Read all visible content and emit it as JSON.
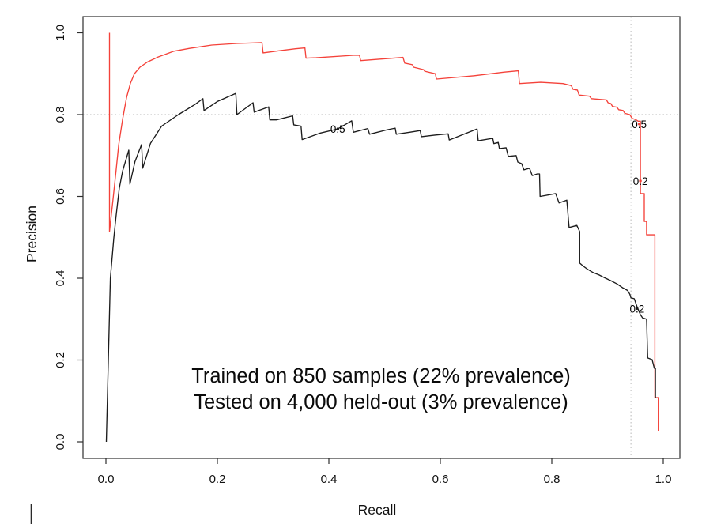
{
  "chart_data": {
    "type": "line",
    "title": "",
    "xlabel": "Recall",
    "ylabel": "Precision",
    "x_tick_labels": [
      "0.0",
      "0.2",
      "0.4",
      "0.6",
      "0.8",
      "1.0"
    ],
    "x_tick_values": [
      0.0,
      0.2,
      0.4,
      0.6,
      0.8,
      1.0
    ],
    "y_tick_labels": [
      "0.0",
      "0.2",
      "0.4",
      "0.6",
      "0.8",
      "1.0"
    ],
    "y_tick_values": [
      0.0,
      0.2,
      0.4,
      0.6,
      0.8,
      1.0
    ],
    "xlim": [
      -0.041,
      1.03
    ],
    "ylim": [
      -0.041,
      1.041
    ],
    "grid": false,
    "legend": null,
    "reference_lines": {
      "horizontal_precision": 0.8,
      "vertical_recall": 0.942,
      "style": "dotted",
      "color": "#b8b8b8"
    },
    "series": [
      {
        "name": "red-pr-curve",
        "color": "#f4423a",
        "points": [
          [
            0.0064,
            1.0
          ],
          [
            0.0064,
            0.514
          ],
          [
            0.013,
            0.597
          ],
          [
            0.018,
            0.661
          ],
          [
            0.023,
            0.727
          ],
          [
            0.03,
            0.79
          ],
          [
            0.037,
            0.842
          ],
          [
            0.044,
            0.877
          ],
          [
            0.051,
            0.9
          ],
          [
            0.061,
            0.916
          ],
          [
            0.075,
            0.929
          ],
          [
            0.094,
            0.941
          ],
          [
            0.122,
            0.955
          ],
          [
            0.15,
            0.962
          ],
          [
            0.19,
            0.97
          ],
          [
            0.235,
            0.974
          ],
          [
            0.28,
            0.976
          ],
          [
            0.282,
            0.951
          ],
          [
            0.31,
            0.956
          ],
          [
            0.34,
            0.961
          ],
          [
            0.357,
            0.963
          ],
          [
            0.359,
            0.938
          ],
          [
            0.377,
            0.939
          ],
          [
            0.444,
            0.945
          ],
          [
            0.455,
            0.945
          ],
          [
            0.457,
            0.932
          ],
          [
            0.533,
            0.94
          ],
          [
            0.536,
            0.926
          ],
          [
            0.55,
            0.922
          ],
          [
            0.552,
            0.916
          ],
          [
            0.57,
            0.91
          ],
          [
            0.572,
            0.906
          ],
          [
            0.591,
            0.9
          ],
          [
            0.593,
            0.887
          ],
          [
            0.661,
            0.895
          ],
          [
            0.715,
            0.904
          ],
          [
            0.74,
            0.907
          ],
          [
            0.742,
            0.876
          ],
          [
            0.78,
            0.879
          ],
          [
            0.82,
            0.876
          ],
          [
            0.835,
            0.871
          ],
          [
            0.838,
            0.862
          ],
          [
            0.846,
            0.86
          ],
          [
            0.849,
            0.848
          ],
          [
            0.868,
            0.845
          ],
          [
            0.871,
            0.839
          ],
          [
            0.898,
            0.836
          ],
          [
            0.901,
            0.829
          ],
          [
            0.906,
            0.827
          ],
          [
            0.909,
            0.82
          ],
          [
            0.917,
            0.818
          ],
          [
            0.92,
            0.812
          ],
          [
            0.928,
            0.81
          ],
          [
            0.931,
            0.803
          ],
          [
            0.94,
            0.8
          ],
          [
            0.944,
            0.791
          ],
          [
            0.95,
            0.788
          ],
          [
            0.955,
            0.784
          ],
          [
            0.959,
            0.784
          ],
          [
            0.959,
            0.607
          ],
          [
            0.966,
            0.607
          ],
          [
            0.966,
            0.539
          ],
          [
            0.97,
            0.539
          ],
          [
            0.97,
            0.506
          ],
          [
            0.985,
            0.506
          ],
          [
            0.985,
            0.108
          ],
          [
            0.991,
            0.108
          ],
          [
            0.991,
            0.027
          ]
        ]
      },
      {
        "name": "black-pr-curve",
        "color": "#1c1c1c",
        "points": [
          [
            0.0007,
            0.0
          ],
          [
            0.008,
            0.4
          ],
          [
            0.014,
            0.497
          ],
          [
            0.018,
            0.55
          ],
          [
            0.024,
            0.62
          ],
          [
            0.03,
            0.663
          ],
          [
            0.041,
            0.713
          ],
          [
            0.043,
            0.63
          ],
          [
            0.052,
            0.685
          ],
          [
            0.064,
            0.727
          ],
          [
            0.066,
            0.669
          ],
          [
            0.08,
            0.73
          ],
          [
            0.1,
            0.772
          ],
          [
            0.13,
            0.8
          ],
          [
            0.16,
            0.825
          ],
          [
            0.174,
            0.839
          ],
          [
            0.176,
            0.81
          ],
          [
            0.2,
            0.832
          ],
          [
            0.233,
            0.852
          ],
          [
            0.235,
            0.8
          ],
          [
            0.264,
            0.829
          ],
          [
            0.266,
            0.806
          ],
          [
            0.292,
            0.819
          ],
          [
            0.294,
            0.787
          ],
          [
            0.306,
            0.787
          ],
          [
            0.335,
            0.797
          ],
          [
            0.337,
            0.775
          ],
          [
            0.35,
            0.772
          ],
          [
            0.352,
            0.739
          ],
          [
            0.385,
            0.755
          ],
          [
            0.416,
            0.765
          ],
          [
            0.441,
            0.785
          ],
          [
            0.444,
            0.757
          ],
          [
            0.47,
            0.766
          ],
          [
            0.473,
            0.752
          ],
          [
            0.505,
            0.763
          ],
          [
            0.519,
            0.767
          ],
          [
            0.521,
            0.752
          ],
          [
            0.545,
            0.757
          ],
          [
            0.564,
            0.761
          ],
          [
            0.566,
            0.746
          ],
          [
            0.59,
            0.75
          ],
          [
            0.614,
            0.753
          ],
          [
            0.616,
            0.738
          ],
          [
            0.666,
            0.765
          ],
          [
            0.668,
            0.736
          ],
          [
            0.694,
            0.742
          ],
          [
            0.696,
            0.729
          ],
          [
            0.704,
            0.732
          ],
          [
            0.706,
            0.717
          ],
          [
            0.718,
            0.719
          ],
          [
            0.722,
            0.698
          ],
          [
            0.736,
            0.7
          ],
          [
            0.739,
            0.684
          ],
          [
            0.746,
            0.68
          ],
          [
            0.75,
            0.665
          ],
          [
            0.76,
            0.669
          ],
          [
            0.765,
            0.651
          ],
          [
            0.774,
            0.655
          ],
          [
            0.778,
            0.655
          ],
          [
            0.779,
            0.6
          ],
          [
            0.807,
            0.607
          ],
          [
            0.813,
            0.584
          ],
          [
            0.827,
            0.591
          ],
          [
            0.831,
            0.524
          ],
          [
            0.845,
            0.529
          ],
          [
            0.85,
            0.514
          ],
          [
            0.85,
            0.437
          ],
          [
            0.857,
            0.429
          ],
          [
            0.864,
            0.422
          ],
          [
            0.874,
            0.414
          ],
          [
            0.885,
            0.408
          ],
          [
            0.895,
            0.401
          ],
          [
            0.906,
            0.394
          ],
          [
            0.917,
            0.386
          ],
          [
            0.928,
            0.376
          ],
          [
            0.936,
            0.37
          ],
          [
            0.94,
            0.361
          ],
          [
            0.942,
            0.352
          ],
          [
            0.948,
            0.35
          ],
          [
            0.953,
            0.33
          ],
          [
            0.959,
            0.311
          ],
          [
            0.963,
            0.303
          ],
          [
            0.97,
            0.3
          ],
          [
            0.972,
            0.205
          ],
          [
            0.98,
            0.201
          ],
          [
            0.984,
            0.18
          ],
          [
            0.986,
            0.18
          ],
          [
            0.986,
            0.108
          ]
        ]
      }
    ],
    "cutoff_labels": [
      {
        "series": "black-pr-curve",
        "label": "0.5",
        "recall": 0.416,
        "precision": 0.765
      },
      {
        "series": "black-pr-curve",
        "label": "0.2",
        "recall": 0.953,
        "precision": 0.326
      },
      {
        "series": "red-pr-curve",
        "label": "0.5",
        "recall": 0.957,
        "precision": 0.777
      },
      {
        "series": "red-pr-curve",
        "label": "0.2",
        "recall": 0.959,
        "precision": 0.638
      }
    ],
    "annotation": {
      "lines": [
        "Trained on 850 samples (22% prevalence)",
        "Tested on 4,000 held-out (3% prevalence)"
      ]
    }
  }
}
